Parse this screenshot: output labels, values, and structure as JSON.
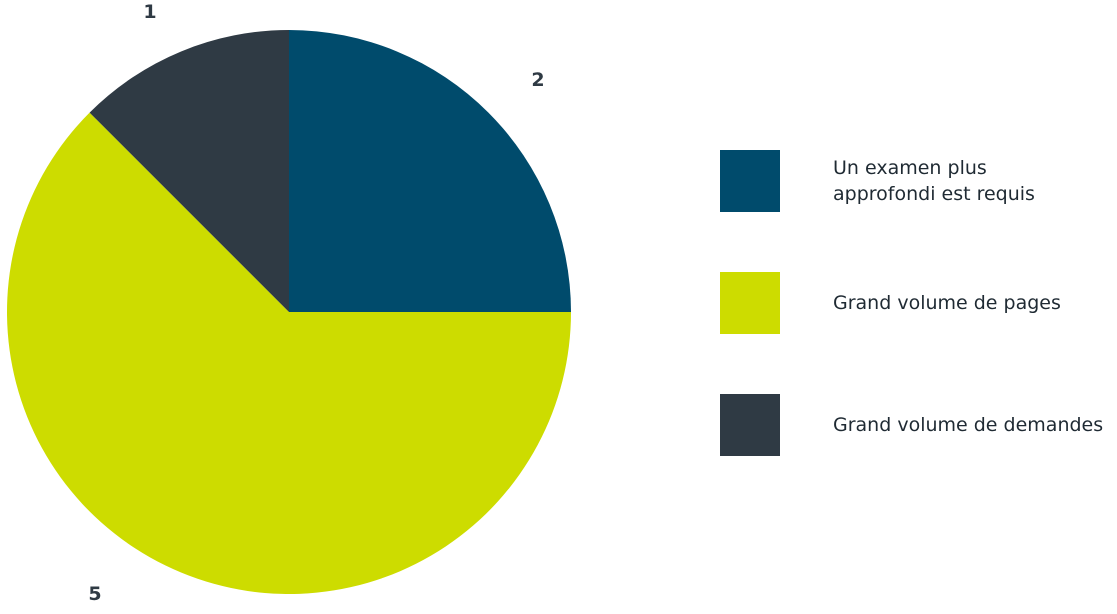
{
  "chart_data": {
    "type": "pie",
    "title": "",
    "categories": [
      "Un examen plus\napprofondi est requis",
      "Grand volume de pages",
      "Grand volume de demandes"
    ],
    "values": [
      2,
      5,
      1
    ],
    "data_labels": [
      "2",
      "5",
      "1"
    ],
    "colors": [
      "#004b6c",
      "#cddc00",
      "#2f3a44"
    ],
    "start_angle_deg": 0,
    "direction": "clockwise",
    "legend_position": "right"
  }
}
